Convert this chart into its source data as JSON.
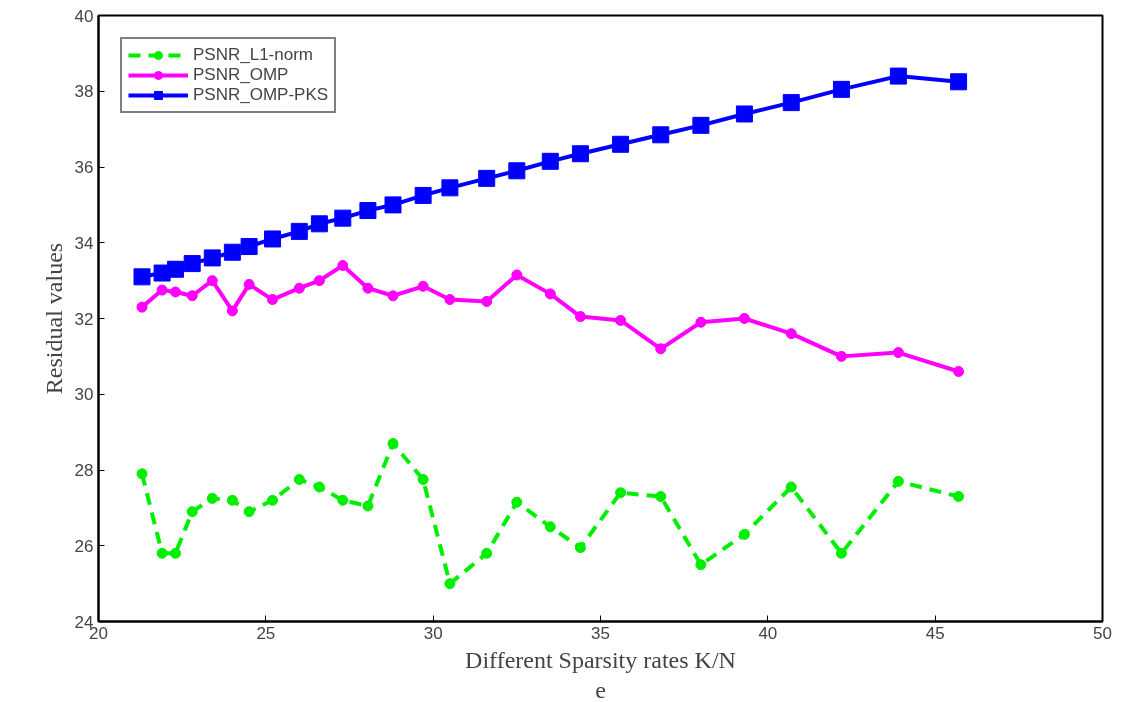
{
  "chart_data": {
    "type": "line",
    "xlabel": "Different Sparsity rates K/N",
    "ylabel": "Residual values",
    "annotations": [
      "e"
    ],
    "x": [
      21.3,
      21.9,
      22.3,
      22.8,
      23.4,
      24.0,
      24.5,
      25.2,
      26.0,
      26.6,
      27.3,
      28.05,
      28.8,
      29.7,
      30.5,
      31.6,
      32.5,
      33.5,
      34.4,
      35.6,
      36.8,
      38.0,
      39.3,
      40.7,
      42.2,
      43.9,
      45.7
    ],
    "series": [
      {
        "name": "PSNR_L1-norm",
        "color": "#00ee00",
        "line_style": "dashed",
        "marker": "circle",
        "values": [
          27.9,
          25.8,
          25.8,
          26.9,
          27.25,
          27.2,
          26.9,
          27.2,
          27.75,
          27.55,
          27.2,
          27.05,
          28.7,
          27.75,
          25.0,
          25.8,
          27.15,
          26.5,
          25.95,
          27.4,
          27.3,
          25.5,
          26.3,
          27.55,
          25.8,
          27.7,
          27.3
        ]
      },
      {
        "name": "PSNR_OMP",
        "color": "#ff00ff",
        "line_style": "solid",
        "marker": "circle",
        "values": [
          32.3,
          32.75,
          32.7,
          32.6,
          33.0,
          32.2,
          32.9,
          32.5,
          32.8,
          33.0,
          33.4,
          32.8,
          32.6,
          32.85,
          32.5,
          32.45,
          33.15,
          32.65,
          32.05,
          31.95,
          31.2,
          31.9,
          32.0,
          31.6,
          31.0,
          31.1,
          30.6
        ]
      },
      {
        "name": "PSNR_OMP-PKS",
        "color": "#0000ff",
        "line_style": "solid",
        "marker": "square",
        "values": [
          33.1,
          33.2,
          33.3,
          33.45,
          33.6,
          33.75,
          33.9,
          34.1,
          34.3,
          34.5,
          34.65,
          34.85,
          35.0,
          35.25,
          35.45,
          35.7,
          35.9,
          36.15,
          36.35,
          36.6,
          36.85,
          37.1,
          37.4,
          37.7,
          38.05,
          38.4,
          38.25
        ]
      }
    ],
    "xlim": [
      20,
      50
    ],
    "xticks": [
      20,
      25,
      30,
      35,
      40,
      45,
      50
    ],
    "ylim": [
      24,
      40
    ],
    "yticks": [
      24,
      26,
      28,
      30,
      32,
      34,
      36,
      38,
      40
    ],
    "grid": false,
    "legend": "top left"
  }
}
